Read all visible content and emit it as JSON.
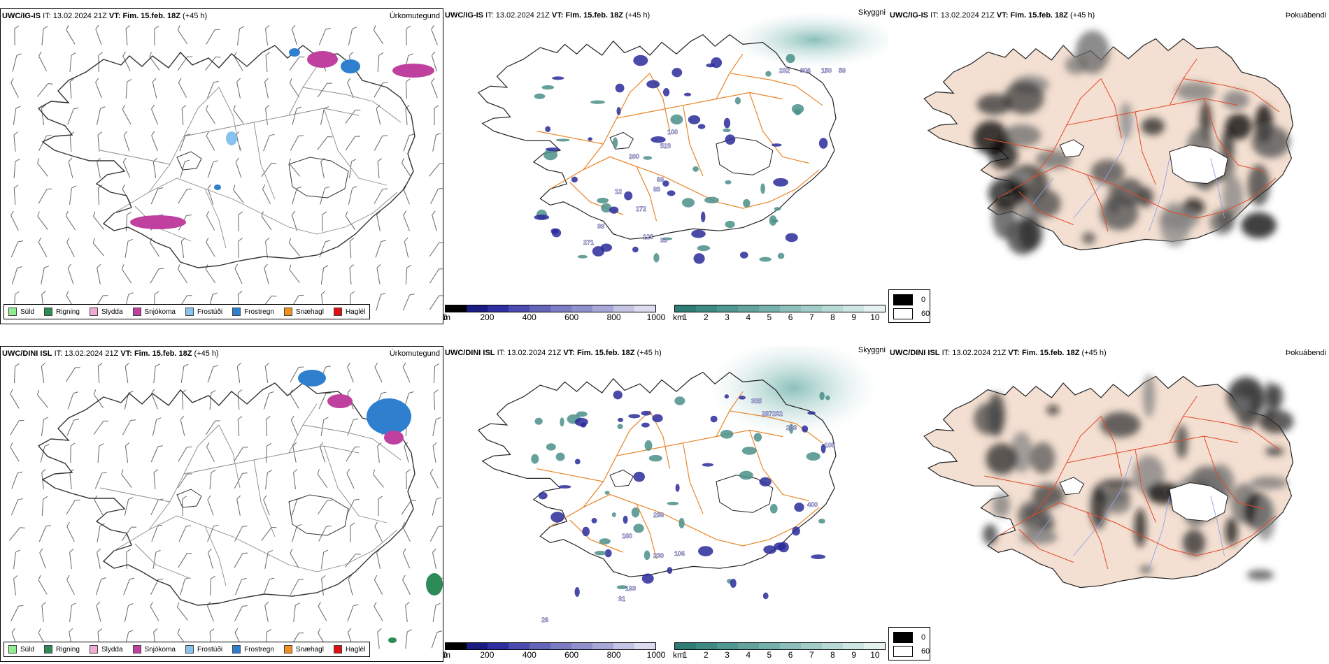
{
  "rows": [
    {
      "model": "UWC/IG-IS",
      "it_label": "IT:",
      "it_value": "13.02.2024 21Z",
      "vt_label": "VT:",
      "vt_value": "Fim. 15.feb. 18Z",
      "lead": "(+45 h)"
    },
    {
      "model": "UWC/DINI ISL",
      "it_label": "IT:",
      "it_value": "13.02.2024 21Z",
      "vt_label": "VT:",
      "vt_value": "Fim. 15.feb. 18Z",
      "lead": "(+45 h)"
    }
  ],
  "panel_titles": {
    "precip": "Úrkomutegund",
    "visibility": "Skyggni",
    "fog": "Þokuábendi"
  },
  "precip_legend": [
    {
      "label": "Súld",
      "color": "#90ee90"
    },
    {
      "label": "Rigning",
      "color": "#2e8b57"
    },
    {
      "label": "Slydda",
      "color": "#f4a8d4"
    },
    {
      "label": "Snjókoma",
      "color": "#c040a0"
    },
    {
      "label": "Frostúði",
      "color": "#87c3f0"
    },
    {
      "label": "Frostregn",
      "color": "#2f7fcf"
    },
    {
      "label": "Snæhagl",
      "color": "#f09020"
    },
    {
      "label": "Haglél",
      "color": "#e01010"
    }
  ],
  "ceiling_bar": {
    "unit": "m",
    "ticks": [
      "0",
      "200",
      "400",
      "600",
      "800",
      "1000"
    ],
    "colors": [
      "#000000",
      "#1a1a80",
      "#2e2ea0",
      "#4a4ab0",
      "#6464b8",
      "#7c7cc4",
      "#9090cc",
      "#a8a8d8",
      "#c4c4e4",
      "#dcdcf0"
    ]
  },
  "vis_bar": {
    "unit": "km",
    "ticks": [
      "1",
      "2",
      "3",
      "4",
      "5",
      "6",
      "7",
      "8",
      "9",
      "10"
    ],
    "colors": [
      "#2e7d75",
      "#3e8a82",
      "#4f9790",
      "#62a39d",
      "#76b0aa",
      "#8cbfb9",
      "#a2ccc7",
      "#b8d9d5",
      "#cee6e3",
      "#e6f2f0"
    ]
  },
  "fog_legend": [
    {
      "label": "0",
      "color": "#000000"
    },
    {
      "label": "60",
      "color": "#ffffff"
    }
  ],
  "ceiling_labels": {
    "top": [
      "232",
      "306",
      "150",
      "59",
      "100",
      "523",
      "200",
      "69",
      "83",
      "172",
      "12",
      "38",
      "271",
      "123",
      "33"
    ],
    "bottom": [
      "335",
      "287",
      "232",
      "208",
      "105",
      "298",
      "180",
      "230",
      "106",
      "193",
      "31",
      "26",
      "400"
    ]
  }
}
